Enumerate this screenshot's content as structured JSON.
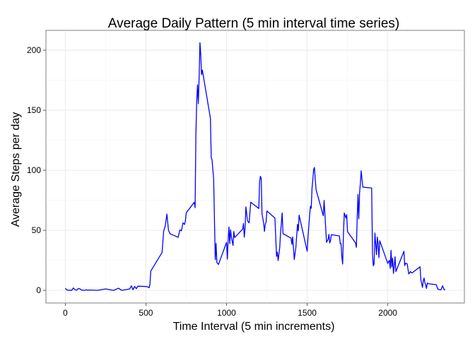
{
  "chart_data": {
    "type": "line",
    "title": "Average Daily Pattern (5 min interval time series)",
    "xlabel": "Time Interval (5 min increments)",
    "ylabel": "Average Steps per day",
    "xlim": [
      -120,
      2475
    ],
    "ylim": [
      -10.5,
      216.5
    ],
    "x_ticks": [
      0,
      500,
      1000,
      1500,
      2000
    ],
    "y_ticks": [
      0,
      50,
      100,
      150,
      200
    ],
    "grid": true,
    "line_color": "#0000ff",
    "series": [
      {
        "x": [
          0,
          10,
          20,
          30,
          40,
          50,
          60,
          70,
          80,
          90,
          100,
          110,
          120,
          130,
          140,
          150,
          200,
          250,
          300,
          330,
          350,
          400,
          410,
          420,
          430,
          440,
          450,
          500,
          510,
          520,
          525,
          530,
          540,
          600,
          610,
          620,
          630,
          640,
          650,
          700,
          710,
          720,
          730,
          740,
          745,
          750,
          800,
          805,
          810,
          815,
          820,
          825,
          830,
          835,
          840,
          845,
          850,
          900,
          905,
          910,
          920,
          930,
          935,
          940,
          950,
          1000,
          1005,
          1010,
          1015,
          1020,
          1025,
          1030,
          1040,
          1045,
          1050,
          1100,
          1105,
          1110,
          1115,
          1120,
          1130,
          1140,
          1150,
          1200,
          1205,
          1210,
          1215,
          1220,
          1230,
          1235,
          1240,
          1245,
          1250,
          1300,
          1310,
          1315,
          1320,
          1330,
          1335,
          1340,
          1345,
          1350,
          1400,
          1405,
          1410,
          1420,
          1430,
          1440,
          1445,
          1450,
          1500,
          1505,
          1510,
          1515,
          1520,
          1525,
          1530,
          1535,
          1540,
          1545,
          1550,
          1555,
          1600,
          1605,
          1610,
          1620,
          1630,
          1635,
          1640,
          1645,
          1650,
          1700,
          1705,
          1710,
          1715,
          1720,
          1725,
          1730,
          1740,
          1745,
          1750,
          1800,
          1805,
          1810,
          1815,
          1820,
          1825,
          1830,
          1835,
          1840,
          1845,
          1850,
          1900,
          1905,
          1910,
          1915,
          1920,
          1930,
          1935,
          1940,
          1945,
          1950,
          2000,
          2005,
          2010,
          2015,
          2020,
          2025,
          2030,
          2035,
          2040,
          2045,
          2050,
          2100,
          2105,
          2110,
          2120,
          2130,
          2140,
          2150,
          2200,
          2205,
          2210,
          2215,
          2220,
          2225,
          2230,
          2235,
          2240,
          2245,
          2250,
          2300,
          2310,
          2320,
          2330,
          2340,
          2350,
          2355
        ],
        "y": [
          1.7,
          0.3,
          0.1,
          0.2,
          0.0,
          2.0,
          0.5,
          0.1,
          1.5,
          1.3,
          0.3,
          0.2,
          0.0,
          0.5,
          0.1,
          0.3,
          0.0,
          1.2,
          0.0,
          1.8,
          0.0,
          1.2,
          3.8,
          0.5,
          3.3,
          1.4,
          3.5,
          3.2,
          3.0,
          2.2,
          5.2,
          16.0,
          18.3,
          31.5,
          49.3,
          53.8,
          63.5,
          50.0,
          47.1,
          44.2,
          50.3,
          49.6,
          56.2,
          54.9,
          58.0,
          64.6,
          73.4,
          68.8,
          130.2,
          157.5,
          171.2,
          155.4,
          177.3,
          206.2,
          195.9,
          179.6,
          183.4,
          143.2,
          110.7,
          108.7,
          92.8,
          25.5,
          39.0,
          23.2,
          21.6,
          40.0,
          26.0,
          42.4,
          52.7,
          38.9,
          50.5,
          44.3,
          37.4,
          49.0,
          44.0,
          51.0,
          55.7,
          44.3,
          52.3,
          69.5,
          57.8,
          56.2,
          73.4,
          68.2,
          90.7,
          95.0,
          93.0,
          63.4,
          56.2,
          49.1,
          54.9,
          56.8,
          66.1,
          60.2,
          28.3,
          31.8,
          24.8,
          36.0,
          48.5,
          56.1,
          64.5,
          47.2,
          43.5,
          38.3,
          44.5,
          25.7,
          35.9,
          55.0,
          49.5,
          62.6,
          32.6,
          44.0,
          53.2,
          62.1,
          70.0,
          68.3,
          84.8,
          91.9,
          100.6,
          102.3,
          92.6,
          83.9,
          62.1,
          74.9,
          63.1,
          40.0,
          42.6,
          46.6,
          39.5,
          41.5,
          46.4,
          45.3,
          38.8,
          39.0,
          28.1,
          21.9,
          47.1,
          64.5,
          60.2,
          63.1,
          49.0,
          39.5,
          35.8,
          58.9,
          79.8,
          59.6,
          81.0,
          89.3,
          99.5,
          92.6,
          86.1,
          85.9,
          85.2,
          30.6,
          20.5,
          21.9,
          47.8,
          29.7,
          44.4,
          38.6,
          27.3,
          41.3,
          22.4,
          24.2,
          25.0,
          18.3,
          33.4,
          19.5,
          26.8,
          14.1,
          20.0,
          28.0,
          15.6,
          32.5,
          20.6,
          22.6,
          22.2,
          13.6,
          15.6,
          14.5,
          19.6,
          8.9,
          5.5,
          2.5,
          8.1,
          10.3,
          6.2,
          4.5,
          1.6,
          6.2,
          5.5,
          4.8,
          1.1,
          0.6,
          0.5,
          3.8,
          0.4,
          1.1
        ],
        "_note": "",
        "name": ""
      }
    ]
  }
}
